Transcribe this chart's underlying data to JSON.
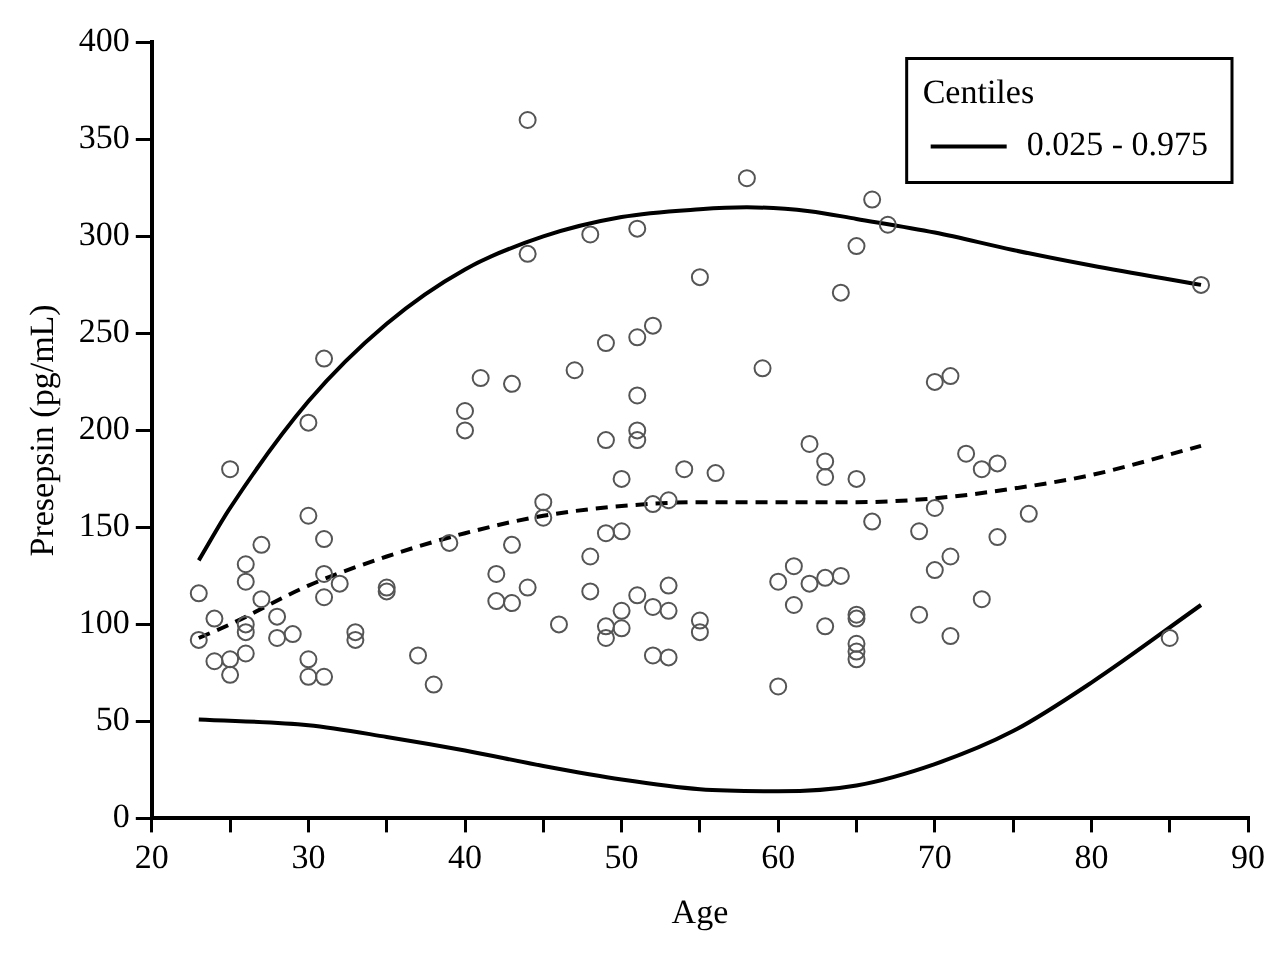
{
  "chart_data": {
    "type": "scatter",
    "xlabel": "Age",
    "ylabel": "Presepsin (pg/mL)",
    "legend_title": "Centiles",
    "legend": "top right",
    "grid": false,
    "xlim": [
      20,
      90
    ],
    "xticks": [
      20,
      {
        "value": 25,
        "label": null
      },
      30,
      {
        "value": 35,
        "label": null
      },
      40,
      {
        "value": 45,
        "label": null
      },
      50,
      {
        "value": 55,
        "label": null
      },
      60,
      {
        "value": 65,
        "label": null
      },
      70,
      {
        "value": 75,
        "label": null
      },
      80,
      {
        "value": 85,
        "label": null
      },
      90
    ],
    "ylim": [
      0,
      400
    ],
    "yticks": [
      0,
      50,
      100,
      150,
      200,
      250,
      300,
      350,
      400
    ],
    "series": [
      {
        "type": "scatter",
        "color": "#555555",
        "marker": "circle",
        "x": [
          23,
          23,
          24,
          24,
          25,
          25,
          25,
          26,
          26,
          26,
          26,
          26,
          27,
          27,
          28,
          28,
          29,
          30,
          30,
          30,
          30,
          31,
          31,
          31,
          31,
          31,
          32,
          33,
          33,
          35,
          35,
          37,
          38,
          39,
          40,
          40,
          41,
          42,
          42,
          43,
          43,
          43,
          44,
          44,
          44,
          45,
          45,
          46,
          47,
          48,
          48,
          48,
          49,
          49,
          49,
          49,
          49,
          50,
          50,
          50,
          50,
          51,
          51,
          51,
          51,
          51,
          51,
          52,
          52,
          52,
          52,
          53,
          53,
          53,
          53,
          54,
          55,
          55,
          55,
          56,
          58,
          59,
          60,
          60,
          61,
          61,
          62,
          62,
          63,
          63,
          63,
          63,
          64,
          64,
          65,
          65,
          65,
          65,
          65,
          65,
          65,
          66,
          66,
          67,
          69,
          69,
          70,
          70,
          70,
          71,
          71,
          71,
          72,
          73,
          73,
          74,
          74,
          76,
          85,
          87
        ],
        "values": [
          116,
          92,
          103,
          81,
          180,
          74,
          82,
          131,
          122,
          100,
          96,
          85,
          141,
          113,
          93,
          104,
          95,
          204,
          156,
          82,
          73,
          237,
          144,
          126,
          114,
          73,
          121,
          96,
          92,
          119,
          117,
          84,
          69,
          142,
          210,
          200,
          227,
          126,
          112,
          224,
          141,
          111,
          360,
          291,
          119,
          163,
          155,
          100,
          231,
          301,
          135,
          117,
          245,
          195,
          147,
          99,
          93,
          175,
          148,
          107,
          98,
          304,
          248,
          218,
          200,
          195,
          115,
          254,
          162,
          109,
          84,
          164,
          120,
          107,
          83,
          180,
          279,
          102,
          96,
          178,
          330,
          232,
          122,
          68,
          130,
          110,
          193,
          121,
          184,
          176,
          124,
          99,
          271,
          125,
          295,
          175,
          105,
          103,
          90,
          86,
          82,
          319,
          153,
          306,
          148,
          105,
          225,
          160,
          128,
          228,
          135,
          94,
          188,
          180,
          113,
          183,
          145,
          157,
          93,
          275
        ]
      },
      {
        "type": "line",
        "name": "0.025 - 0.975",
        "color": "#000000",
        "line_style": "solid",
        "marker": "none",
        "x": [
          23,
          25,
          30,
          35,
          40,
          45,
          50,
          55,
          58,
          62,
          65,
          70,
          75,
          80,
          87
        ],
        "values": [
          133,
          160,
          215,
          255,
          283,
          300,
          310,
          314,
          315,
          313,
          309,
          302,
          293,
          285,
          275
        ]
      },
      {
        "type": "line",
        "color": "#000000",
        "line_style": "dashed",
        "marker": "none",
        "x": [
          23,
          25,
          30,
          35,
          40,
          45,
          50,
          55,
          60,
          65,
          70,
          75,
          80,
          87
        ],
        "values": [
          93,
          100,
          120,
          135,
          147,
          156,
          161,
          163,
          163,
          163,
          165,
          170,
          177,
          192
        ]
      },
      {
        "type": "line",
        "color": "#000000",
        "line_style": "solid",
        "marker": "none",
        "x": [
          23,
          30,
          35,
          40,
          45,
          50,
          55,
          60,
          65,
          70,
          75,
          80,
          87
        ],
        "values": [
          51,
          48,
          42,
          35,
          27,
          20,
          15,
          14,
          17,
          28,
          45,
          70,
          110
        ]
      }
    ]
  }
}
